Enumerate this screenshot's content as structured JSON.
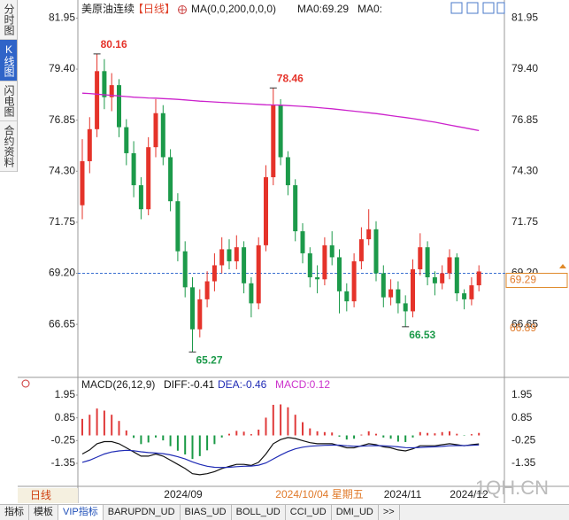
{
  "sidebar": [
    "分时图",
    "K线图",
    "闪电图",
    "合约资料"
  ],
  "chart_data": [
    {
      "type": "candlestick",
      "title": "美原油连续",
      "period": "【日线】",
      "legend_texts": [
        "MA(0,0,200,0,0,0)",
        "MA0:69.29",
        "MA0:"
      ],
      "up_color": "#e5332a",
      "down_color": "#1c9a4a",
      "candles": [
        [
          72.6,
          75.9,
          71.9,
          74.8
        ],
        [
          74.8,
          77.0,
          74.2,
          76.4
        ],
        [
          76.4,
          80.16,
          76.0,
          79.3
        ],
        [
          79.3,
          79.9,
          77.4,
          78.0
        ],
        [
          78.0,
          79.2,
          77.3,
          78.6
        ],
        [
          78.6,
          78.9,
          76.0,
          76.5
        ],
        [
          76.5,
          76.9,
          74.6,
          75.2
        ],
        [
          75.2,
          75.8,
          73.0,
          73.6
        ],
        [
          73.6,
          74.0,
          71.9,
          72.4
        ],
        [
          72.4,
          76.0,
          72.1,
          75.5
        ],
        [
          75.5,
          77.9,
          75.0,
          77.2
        ],
        [
          77.2,
          77.6,
          74.6,
          75.0
        ],
        [
          75.0,
          75.4,
          72.3,
          72.8
        ],
        [
          72.8,
          73.2,
          69.8,
          70.3
        ],
        [
          70.3,
          70.8,
          68.0,
          68.5
        ],
        [
          68.5,
          69.0,
          65.27,
          66.4
        ],
        [
          66.4,
          68.4,
          66.0,
          67.9
        ],
        [
          67.9,
          69.3,
          67.5,
          68.8
        ],
        [
          68.8,
          70.2,
          68.3,
          69.6
        ],
        [
          69.6,
          71.0,
          69.2,
          70.4
        ],
        [
          70.4,
          70.9,
          69.4,
          69.8
        ],
        [
          69.8,
          71.1,
          69.4,
          70.5
        ],
        [
          70.5,
          70.8,
          68.2,
          68.7
        ],
        [
          68.7,
          69.0,
          67.0,
          67.7
        ],
        [
          67.7,
          71.0,
          67.4,
          70.6
        ],
        [
          70.6,
          74.6,
          70.3,
          74.0
        ],
        [
          74.0,
          78.46,
          73.6,
          77.6
        ],
        [
          77.6,
          77.9,
          74.6,
          75.0
        ],
        [
          75.0,
          75.3,
          73.1,
          73.6
        ],
        [
          73.6,
          73.9,
          70.8,
          71.3
        ],
        [
          71.3,
          71.7,
          69.7,
          70.2
        ],
        [
          70.2,
          70.5,
          68.5,
          69.0
        ],
        [
          69.0,
          69.6,
          68.2,
          68.9
        ],
        [
          68.9,
          71.0,
          68.6,
          70.6
        ],
        [
          70.6,
          71.3,
          69.6,
          70.0
        ],
        [
          70.0,
          70.4,
          67.2,
          68.3
        ],
        [
          68.3,
          68.7,
          67.3,
          67.8
        ],
        [
          67.8,
          70.2,
          67.5,
          69.8
        ],
        [
          69.8,
          71.5,
          69.4,
          70.9
        ],
        [
          70.9,
          72.4,
          70.6,
          71.4
        ],
        [
          71.4,
          71.8,
          68.8,
          69.2
        ],
        [
          69.2,
          69.6,
          67.5,
          68.0
        ],
        [
          68.0,
          68.9,
          67.6,
          68.4
        ],
        [
          68.4,
          68.8,
          67.2,
          67.7
        ],
        [
          67.7,
          68.1,
          66.53,
          67.3
        ],
        [
          67.3,
          69.9,
          67.0,
          69.4
        ],
        [
          69.4,
          71.2,
          69.1,
          70.5
        ],
        [
          70.5,
          70.8,
          68.6,
          69.0
        ],
        [
          69.0,
          69.3,
          68.1,
          68.7
        ],
        [
          68.7,
          69.6,
          68.4,
          69.2
        ],
        [
          69.2,
          70.4,
          68.9,
          70.0
        ],
        [
          70.0,
          70.2,
          67.8,
          68.2
        ],
        [
          68.2,
          68.4,
          67.4,
          67.9
        ],
        [
          67.9,
          69.0,
          67.6,
          68.6
        ],
        [
          68.6,
          69.6,
          68.3,
          69.29
        ]
      ],
      "ma": {
        "color": "#cc22cc",
        "values": [
          78.2,
          78.18,
          78.15,
          78.12,
          78.09,
          78.06,
          78.03,
          78.0,
          77.98,
          77.96,
          77.95,
          77.93,
          77.91,
          77.89,
          77.86,
          77.83,
          77.8,
          77.78,
          77.76,
          77.74,
          77.72,
          77.7,
          77.68,
          77.66,
          77.64,
          77.62,
          77.61,
          77.6,
          77.58,
          77.56,
          77.54,
          77.51,
          77.48,
          77.45,
          77.42,
          77.38,
          77.34,
          77.3,
          77.26,
          77.22,
          77.18,
          77.13,
          77.08,
          77.03,
          76.98,
          76.93,
          76.87,
          76.81,
          76.75,
          76.68,
          76.61,
          76.54,
          76.47,
          76.4,
          76.33
        ]
      },
      "ylim": [
        64.0,
        82.5
      ],
      "yticks": [
        81.95,
        {
          "value": 79.4,
          "label": "79.40"
        },
        76.85,
        {
          "value": 74.3,
          "label": "74.30"
        },
        71.75,
        {
          "value": 69.2,
          "label": "69.20"
        },
        66.65
      ],
      "price_line": 69.2,
      "last_price": 69.29,
      "marker_price": 66.89,
      "grid": false
    },
    {
      "type": "macd",
      "title": "MACD(26,12,9)",
      "series": [
        {
          "name": "DIFF:-0.41",
          "color": "#111111",
          "values": [
            -0.9,
            -0.7,
            -0.4,
            -0.3,
            -0.3,
            -0.4,
            -0.6,
            -0.8,
            -1.0,
            -1.0,
            -0.9,
            -1.0,
            -1.2,
            -1.4,
            -1.6,
            -1.85,
            -1.9,
            -1.85,
            -1.75,
            -1.6,
            -1.5,
            -1.4,
            -1.4,
            -1.45,
            -1.3,
            -0.9,
            -0.4,
            -0.2,
            -0.1,
            -0.15,
            -0.25,
            -0.35,
            -0.4,
            -0.4,
            -0.4,
            -0.5,
            -0.6,
            -0.6,
            -0.5,
            -0.4,
            -0.45,
            -0.55,
            -0.6,
            -0.7,
            -0.75,
            -0.65,
            -0.5,
            -0.5,
            -0.5,
            -0.45,
            -0.4,
            -0.45,
            -0.5,
            -0.45,
            -0.41
          ]
        },
        {
          "name": "DEA:-0.46",
          "color": "#1f2bb5",
          "values": [
            -1.3,
            -1.2,
            -1.05,
            -0.9,
            -0.8,
            -0.75,
            -0.72,
            -0.74,
            -0.79,
            -0.83,
            -0.85,
            -0.88,
            -0.94,
            -1.03,
            -1.14,
            -1.28,
            -1.4,
            -1.49,
            -1.54,
            -1.55,
            -1.54,
            -1.51,
            -1.49,
            -1.48,
            -1.44,
            -1.33,
            -1.14,
            -0.95,
            -0.78,
            -0.65,
            -0.57,
            -0.52,
            -0.5,
            -0.48,
            -0.47,
            -0.47,
            -0.5,
            -0.52,
            -0.52,
            -0.5,
            -0.49,
            -0.5,
            -0.52,
            -0.55,
            -0.59,
            -0.6,
            -0.58,
            -0.56,
            -0.55,
            -0.53,
            -0.5,
            -0.49,
            -0.49,
            -0.48,
            -0.46
          ]
        },
        {
          "name": "MACD:0.12",
          "color": "#cc33cc",
          "up_color": "#e03a3a",
          "down_color": "#1a9a46",
          "values": [
            0.8,
            1.0,
            1.3,
            1.2,
            1.0,
            0.7,
            0.24,
            -0.12,
            -0.42,
            -0.34,
            -0.1,
            -0.24,
            -0.52,
            -0.74,
            -0.92,
            -1.14,
            -1.0,
            -0.72,
            -0.42,
            -0.1,
            0.08,
            0.22,
            0.18,
            0.06,
            0.28,
            0.86,
            1.48,
            1.5,
            1.36,
            1.0,
            0.64,
            0.34,
            0.2,
            0.16,
            0.14,
            -0.06,
            -0.2,
            -0.16,
            0.04,
            0.2,
            0.08,
            -0.1,
            -0.16,
            -0.3,
            -0.32,
            -0.1,
            0.16,
            0.12,
            0.1,
            0.16,
            0.2,
            0.08,
            -0.02,
            0.06,
            0.12
          ]
        }
      ],
      "ylim": [
        -2.42,
        2.55
      ],
      "yticks": [
        1.95,
        0.85,
        -0.25,
        -1.35
      ]
    }
  ],
  "bottom_bar": {
    "period": "日线",
    "dates": [
      "2024/09",
      "2024/11",
      "2024/12"
    ],
    "cursor_date": "2024/10/04 星期五"
  },
  "tabs": [
    "指标",
    "模板",
    "VIP指标",
    "BARUPDN_UD",
    "BIAS_UD",
    "BOLL_UD",
    "CCI_UD",
    "DMI_UD",
    ">>"
  ],
  "watermark": "1QH.CN"
}
